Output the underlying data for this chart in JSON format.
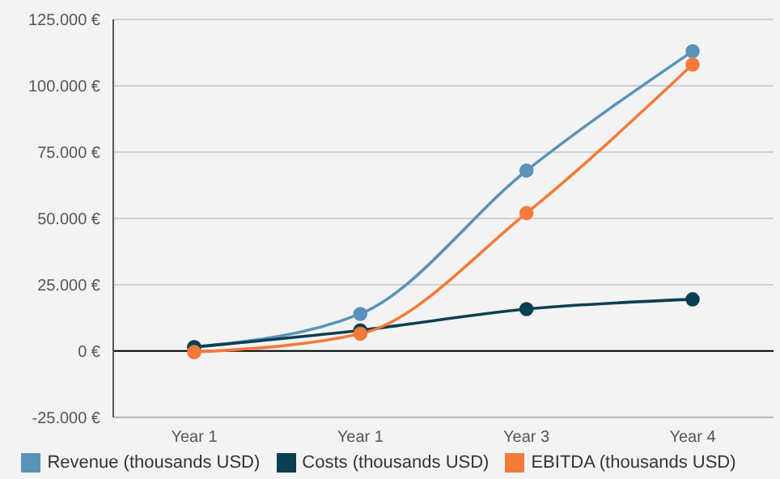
{
  "chart_data": {
    "type": "line",
    "categories": [
      "Year 1",
      "Year 1",
      "Year 3",
      "Year 4"
    ],
    "series": [
      {
        "name": "Revenue (thousands USD)",
        "color": "#5b93b8",
        "values": [
          1500,
          14000,
          68000,
          113000
        ]
      },
      {
        "name": "Costs (thousands USD)",
        "color": "#0b3f52",
        "values": [
          1500,
          7800,
          15800,
          19500
        ]
      },
      {
        "name": "EBITDA (thousands USD)",
        "color": "#f47a3a",
        "values": [
          -400,
          6500,
          52000,
          108000
        ]
      }
    ],
    "ylim": [
      -25000,
      125000
    ],
    "yticks": [
      {
        "value": -25000,
        "label": "-25.000 €"
      },
      {
        "value": 0,
        "label": "0 €"
      },
      {
        "value": 25000,
        "label": "25.000 €"
      },
      {
        "value": 50000,
        "label": "50.000 €"
      },
      {
        "value": 75000,
        "label": "75.000 €"
      },
      {
        "value": 100000,
        "label": "100.000 €"
      },
      {
        "value": 125000,
        "label": "125.000 €"
      }
    ],
    "grid": "y",
    "legend": "bottom",
    "marker": "circle",
    "line_style": "solid"
  }
}
